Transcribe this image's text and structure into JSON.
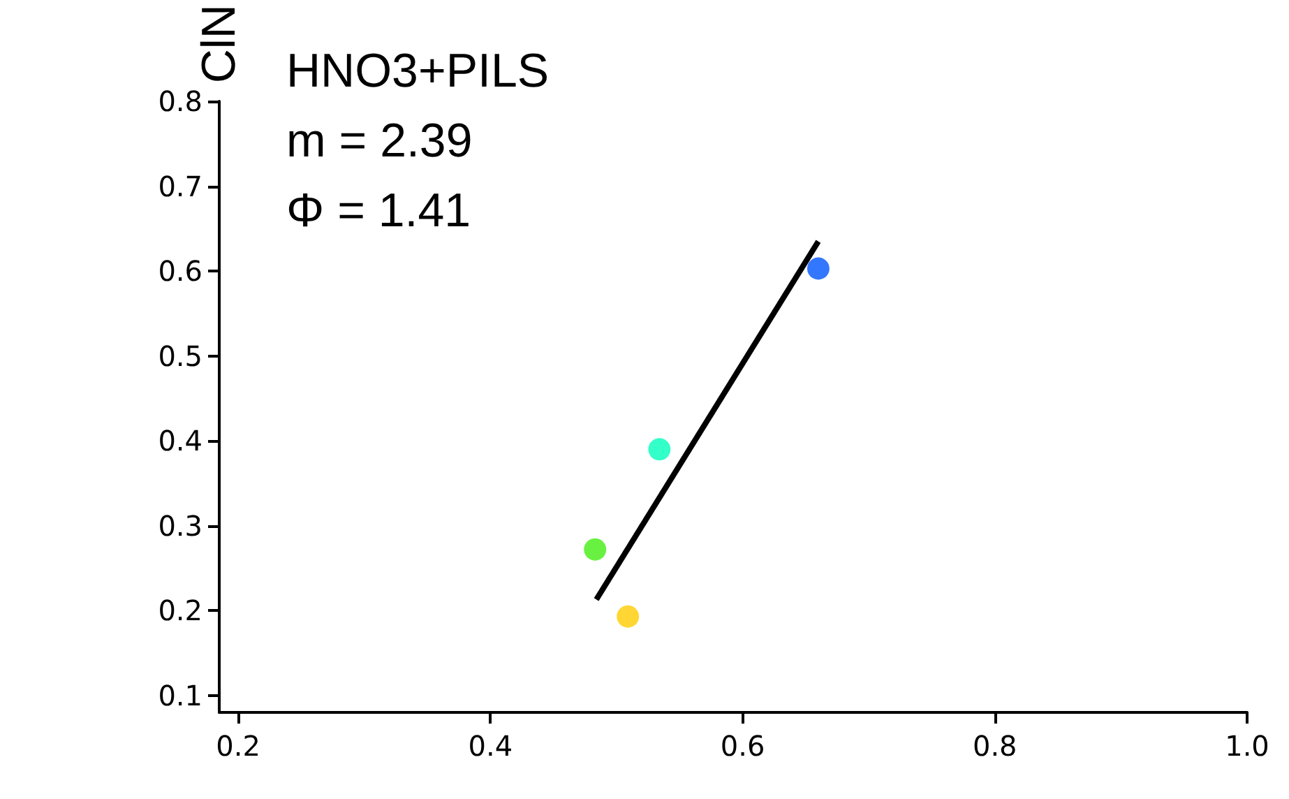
{
  "chart_data": {
    "type": "scatter",
    "ylabel": "ClN",
    "annotations": [
      "HNO3+PILS",
      "m = 2.39",
      "Φ = 1.41"
    ],
    "series": [
      {
        "marker": "circle",
        "x": [
          0.483,
          0.509,
          0.534,
          0.66
        ],
        "values": [
          0.272,
          0.193,
          0.39,
          0.603
        ],
        "colors": [
          "#44ee11",
          "#ffcc00",
          "#00ffbb",
          "#0055ff"
        ]
      },
      {
        "type": "line",
        "x": [
          0.484,
          0.66
        ],
        "values": [
          0.213,
          0.635
        ],
        "color": "#000000"
      }
    ],
    "xlim": [
      0.185,
      1.0
    ],
    "xticks": [
      0.2,
      0.4,
      0.6,
      0.8,
      {
        "value": 1.0,
        "label": "1.0"
      }
    ],
    "ylim": [
      0.08,
      0.8
    ],
    "yticks": [
      0.1,
      0.2,
      0.3,
      0.4,
      0.5,
      0.6,
      0.7,
      0.8
    ],
    "grid": false
  }
}
